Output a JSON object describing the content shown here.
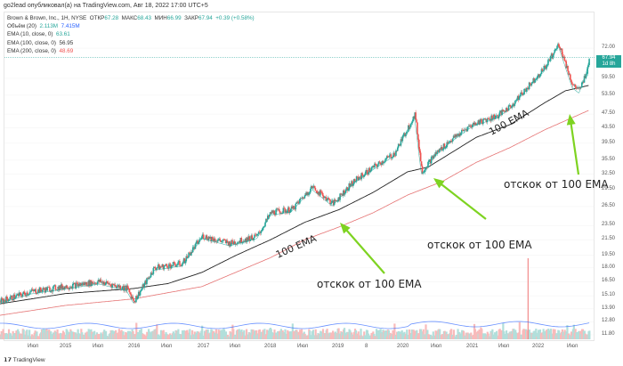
{
  "header": {
    "publisher": "go2lead опубликовал(а) на TradingView.com, Авг 18, 2022 17:00 UTC+5"
  },
  "legend": {
    "symbol": "Brown & Brown, Inc., 1Н, NYSE",
    "open_label": "ОТКР",
    "open": "67.28",
    "high_label": "МАКС",
    "high": "68.43",
    "low_label": "МИН",
    "low": "66.99",
    "close_label": "ЗАКР",
    "close": "67.94",
    "change": "+0.39 (+0.58%)",
    "volume_label": "Объём (20)",
    "volume": "2.113M",
    "volume_ma": "7.415M",
    "ema10_label": "EMA (10, close, 0)",
    "ema10": "63.61",
    "ema100_label": "EMA (100, close, 0)",
    "ema100": "56.95",
    "ema200_label": "EMA (200, close, 0)",
    "ema200": "48.69"
  },
  "price_badge": {
    "price": "67.94",
    "countdown": "1d 8h"
  },
  "colors": {
    "up": "#26a69a",
    "down": "#ef5350",
    "ema100": "#222222",
    "ema200": "#e57373",
    "volume_ma": "#2962ff",
    "arrow": "#7ed321"
  },
  "annotations": {
    "ema_label_1": "100 EMA",
    "ema_label_2": "100 EMA",
    "bounce_1": "отскок от 100 EMA",
    "bounce_2": "отскок от 100 EMA",
    "bounce_3": "отскок от 100 EMA"
  },
  "footer": {
    "brand": "TradingView"
  },
  "chart_data": {
    "type": "candlestick",
    "scale": "log",
    "y_ticks": [
      "72.00",
      "59.50",
      "53.50",
      "47.50",
      "43.50",
      "39.50",
      "35.50",
      "32.50",
      "29.50",
      "26.50",
      "23.50",
      "21.50",
      "19.50",
      "18.00",
      "16.50",
      "15.10",
      "13.90",
      "12.80",
      "11.80"
    ],
    "x_ticks": [
      "Июл",
      "2015",
      "Июл",
      "2016",
      "Июл",
      "2017",
      "Июл",
      "2018",
      "Июл",
      "2019",
      "8",
      "2020",
      "Июл",
      "2021",
      "Июл",
      "2022",
      "Июл"
    ],
    "price": [
      [
        2014.0,
        14.5
      ],
      [
        2014.5,
        15.5
      ],
      [
        2015.0,
        16
      ],
      [
        2015.5,
        16.5
      ],
      [
        2015.9,
        15.8
      ],
      [
        2016.0,
        14.6
      ],
      [
        2016.3,
        18
      ],
      [
        2016.7,
        18.5
      ],
      [
        2017.0,
        22
      ],
      [
        2017.4,
        21
      ],
      [
        2017.8,
        22
      ],
      [
        2018.0,
        25.5
      ],
      [
        2018.3,
        26
      ],
      [
        2018.6,
        30
      ],
      [
        2018.9,
        27
      ],
      [
        2019.2,
        31
      ],
      [
        2019.5,
        34
      ],
      [
        2019.8,
        37
      ],
      [
        2020.1,
        47.5
      ],
      [
        2020.2,
        33
      ],
      [
        2020.4,
        37
      ],
      [
        2020.6,
        40
      ],
      [
        2020.9,
        44
      ],
      [
        2021.0,
        45
      ],
      [
        2021.3,
        47
      ],
      [
        2021.5,
        50
      ],
      [
        2021.8,
        58
      ],
      [
        2022.0,
        64
      ],
      [
        2022.2,
        74
      ],
      [
        2022.4,
        57
      ],
      [
        2022.5,
        55
      ],
      [
        2022.6,
        62
      ],
      [
        2022.65,
        67.94
      ]
    ],
    "ema100": [
      [
        2014.0,
        14.3
      ],
      [
        2015.0,
        15.3
      ],
      [
        2016.0,
        15.8
      ],
      [
        2016.5,
        16.3
      ],
      [
        2017.0,
        17.5
      ],
      [
        2017.5,
        19.5
      ],
      [
        2018.0,
        21.5
      ],
      [
        2018.5,
        24
      ],
      [
        2019.0,
        26
      ],
      [
        2019.5,
        29
      ],
      [
        2020.0,
        33
      ],
      [
        2020.3,
        34
      ],
      [
        2021.0,
        41
      ],
      [
        2021.5,
        44.5
      ],
      [
        2022.0,
        51
      ],
      [
        2022.3,
        55
      ],
      [
        2022.65,
        56.95
      ]
    ],
    "ema200": [
      [
        2014.0,
        13.3
      ],
      [
        2015.0,
        14.2
      ],
      [
        2016.0,
        14.8
      ],
      [
        2017.0,
        16
      ],
      [
        2018.0,
        19.2
      ],
      [
        2018.5,
        21.5
      ],
      [
        2019.0,
        23.3
      ],
      [
        2019.5,
        25.5
      ],
      [
        2020.0,
        28.5
      ],
      [
        2020.5,
        31
      ],
      [
        2021.0,
        35
      ],
      [
        2021.5,
        38.5
      ],
      [
        2022.0,
        43
      ],
      [
        2022.65,
        48.69
      ]
    ]
  }
}
